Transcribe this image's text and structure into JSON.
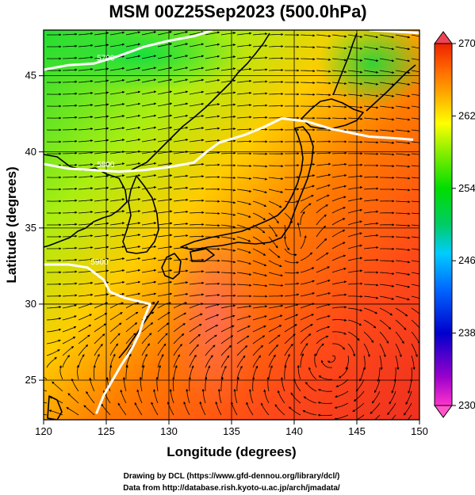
{
  "title": "MSM 00Z25Sep2023 (500.0hPa)",
  "x_axis": {
    "label": "Longitude (degrees)",
    "min": 120,
    "max": 150,
    "ticks": [
      "120",
      "125",
      "130",
      "135",
      "140",
      "145",
      "150"
    ]
  },
  "y_axis": {
    "label": "Latitude  (degrees)",
    "min": 22.4,
    "max": 48,
    "ticks": [
      "25",
      "30",
      "35",
      "40",
      "45"
    ]
  },
  "colorbar": {
    "min": 230,
    "max": 270,
    "ticks": [
      "230",
      "238",
      "246",
      "254",
      "262",
      "270"
    ],
    "colors": [
      "#ff33cc",
      "#9900cc",
      "#0000cc",
      "#0066ff",
      "#00ccff",
      "#00cc66",
      "#00dd00",
      "#88ee00",
      "#ffff00",
      "#ffaa00",
      "#ff6600",
      "#ee2200"
    ]
  },
  "contours": [
    {
      "label": "5700",
      "points": [
        [
          120,
          45.4
        ],
        [
          122,
          45.7
        ],
        [
          124,
          45.8
        ],
        [
          126,
          46.3
        ],
        [
          128,
          46.9
        ],
        [
          130,
          47.3
        ],
        [
          132,
          47.6
        ],
        [
          133.5,
          48.0
        ]
      ]
    },
    {
      "label": "5800",
      "points": [
        [
          120,
          39.2
        ],
        [
          122,
          38.9
        ],
        [
          124,
          38.8
        ],
        [
          126,
          38.7
        ],
        [
          128,
          38.8
        ],
        [
          130,
          39.0
        ],
        [
          132,
          39.3
        ],
        [
          133,
          40.0
        ],
        [
          134,
          40.6
        ],
        [
          136,
          41.1
        ],
        [
          137.5,
          41.6
        ],
        [
          139,
          42.2
        ],
        [
          141,
          42.0
        ],
        [
          143,
          41.5
        ],
        [
          146,
          41.0
        ],
        [
          148,
          40.9
        ],
        [
          149.5,
          40.8
        ]
      ]
    },
    {
      "label": "5900",
      "points": [
        [
          120,
          32.6
        ],
        [
          122,
          32.6
        ],
        [
          123.5,
          32.4
        ],
        [
          124.8,
          31.6
        ],
        [
          125.3,
          30.8
        ],
        [
          126.5,
          30.4
        ],
        [
          127.5,
          30.2
        ],
        [
          128.5,
          30.0
        ],
        [
          128,
          29.0
        ],
        [
          127.6,
          28.0
        ],
        [
          127,
          27.0
        ],
        [
          126.2,
          26.0
        ],
        [
          125.5,
          25.0
        ],
        [
          124.8,
          24.0
        ],
        [
          124.2,
          22.8
        ]
      ]
    },
    {
      "label": "",
      "points": [
        [
          146,
          48.0
        ],
        [
          148,
          47.9
        ],
        [
          150,
          47.8
        ]
      ]
    }
  ],
  "footer": {
    "line1": "Drawing by DCL (https://www.gfd-dennou.org/library/dcl/)",
    "line2": "Data from http://database.rish.kyoto-u.ac.jp/arch/jmadata/"
  }
}
